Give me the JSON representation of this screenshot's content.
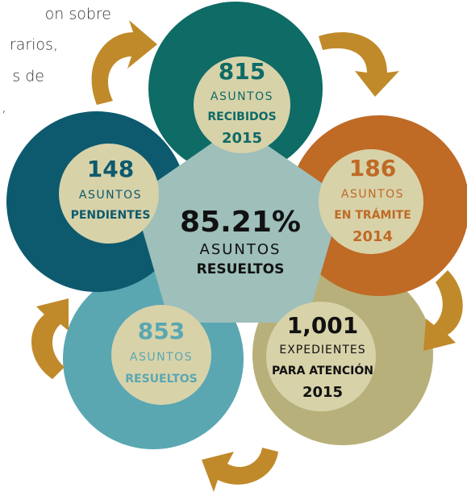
{
  "intro_text": [
    "on sobre",
    "rarios,",
    "s de",
    ","
  ],
  "center": {
    "value": "85.21%",
    "line1": "ASUNTOS",
    "line2": "RESUELTOS"
  },
  "nodes": [
    {
      "number": "815",
      "line1": "ASUNTOS",
      "line2": "RECIBIDOS",
      "line3": "2015"
    },
    {
      "number": "186",
      "line1": "ASUNTOS",
      "line2": "EN TRÁMITE",
      "line3": "2014"
    },
    {
      "number": "1,001",
      "line1": "EXPEDIENTES",
      "line2": "PARA ATENCIÓN",
      "line3": "2015"
    },
    {
      "number": "853",
      "line1": "ASUNTOS",
      "line2": "RESUELTOS"
    },
    {
      "number": "148",
      "line1": "ASUNTOS",
      "line2": "PENDIENTES"
    }
  ]
}
